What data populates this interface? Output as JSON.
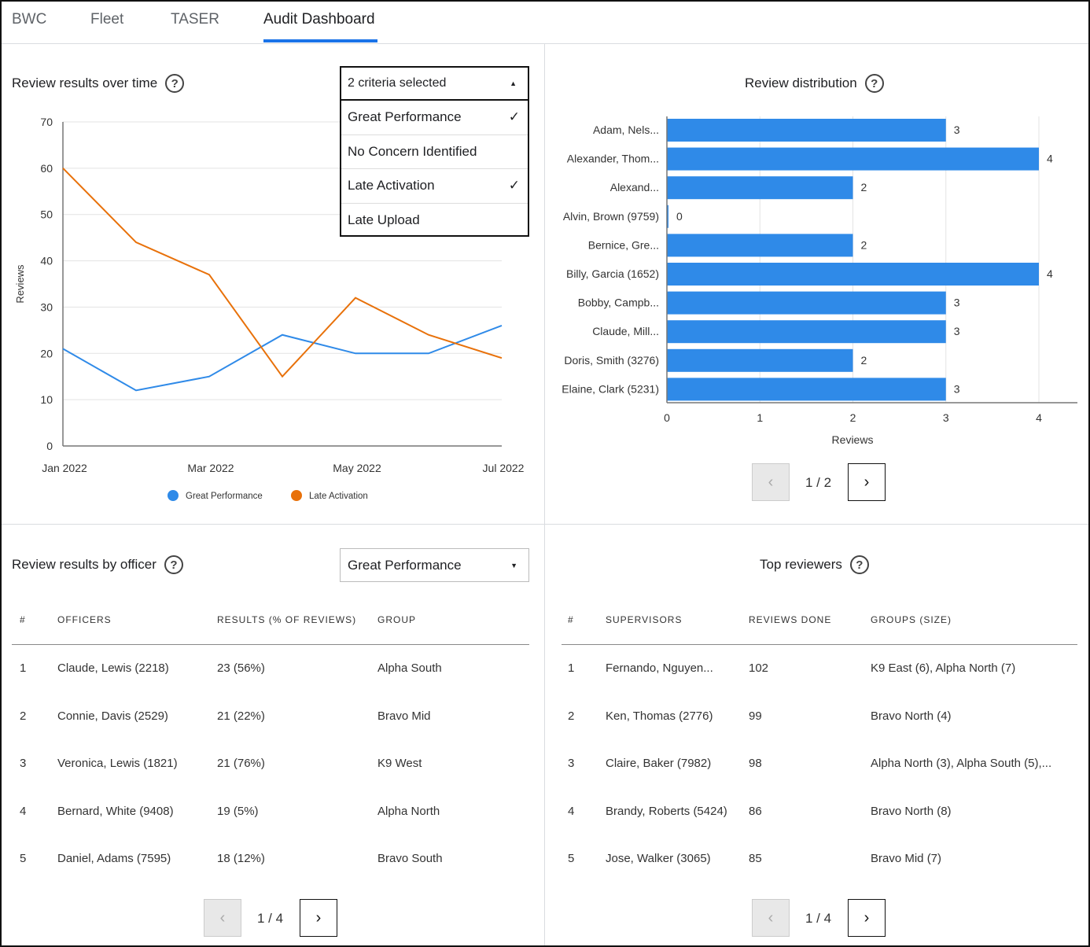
{
  "tabs": [
    {
      "label": "BWC"
    },
    {
      "label": "Fleet"
    },
    {
      "label": "TASER"
    },
    {
      "label": "Audit Dashboard",
      "active": true
    }
  ],
  "review_over_time": {
    "title": "Review results over time",
    "help_icon": "question-circle-icon",
    "dropdown": {
      "value": "2 criteria selected",
      "options": [
        {
          "label": "Great Performance",
          "checked": true
        },
        {
          "label": "No Concern Identified",
          "checked": false
        },
        {
          "label": "Late Activation",
          "checked": true
        },
        {
          "label": "Late Upload",
          "checked": false
        }
      ]
    }
  },
  "review_distribution": {
    "title": "Review distribution",
    "page": "1 / 2"
  },
  "by_officer": {
    "title": "Review results by officer",
    "select_value": "Great Performance",
    "headers": [
      "#",
      "OFFICERS",
      "RESULTS (% OF REVIEWS)",
      "GROUP"
    ],
    "rows": [
      [
        "1",
        "Claude, Lewis (2218)",
        "23 (56%)",
        "Alpha South"
      ],
      [
        "2",
        "Connie, Davis (2529)",
        "21 (22%)",
        "Bravo Mid"
      ],
      [
        "3",
        "Veronica, Lewis (1821)",
        "21 (76%)",
        "K9 West"
      ],
      [
        "4",
        "Bernard, White (9408)",
        "19 (5%)",
        "Alpha North"
      ],
      [
        "5",
        "Daniel, Adams (7595)",
        "18 (12%)",
        "Bravo South"
      ]
    ],
    "page": "1 / 4"
  },
  "top_reviewers": {
    "title": "Top reviewers",
    "headers": [
      "#",
      "SUPERVISORS",
      "REVIEWS DONE",
      "GROUPS (SIZE)"
    ],
    "rows": [
      [
        "1",
        "Fernando, Nguyen...",
        "102",
        "K9 East (6), Alpha North (7)"
      ],
      [
        "2",
        "Ken, Thomas (2776)",
        "99",
        "Bravo North (4)"
      ],
      [
        "3",
        "Claire, Baker (7982)",
        "98",
        "Alpha North (3), Alpha South (5),..."
      ],
      [
        "4",
        "Brandy, Roberts (5424)",
        "86",
        "Bravo North (8)"
      ],
      [
        "5",
        "Jose, Walker (3065)",
        "85",
        "Bravo Mid (7)"
      ]
    ],
    "page": "1 / 4"
  },
  "chart_data": [
    {
      "type": "line",
      "x": [
        "Jan 2022",
        "Feb 2022",
        "Mar 2022",
        "Apr 2022",
        "May 2022",
        "Jun 2022",
        "Jul 2022"
      ],
      "xticks": [
        "Jan 2022",
        "Mar 2022",
        "May 2022",
        "Jul 2022"
      ],
      "ylabel": "Reviews",
      "ylim": [
        0,
        70
      ],
      "yticks": [
        0,
        10,
        20,
        30,
        40,
        50,
        60,
        70
      ],
      "grid": true,
      "legend": "bottom",
      "series": [
        {
          "name": "Great Performance",
          "color": "#2f8ae8",
          "values": [
            21,
            12,
            15,
            24,
            20,
            20,
            26
          ]
        },
        {
          "name": "Late Activation",
          "color": "#e8710a",
          "values": [
            60,
            44,
            37,
            15,
            32,
            24,
            19
          ]
        }
      ]
    },
    {
      "type": "bar",
      "orientation": "horizontal",
      "xlabel": "Reviews",
      "xlim": [
        0,
        4
      ],
      "xticks": [
        0,
        1,
        2,
        3,
        4
      ],
      "grid": true,
      "color": "#2f8ae8",
      "categories": [
        "Adam, Nels...",
        "Alexander, Thom...",
        "Alexand...",
        "Alvin, Brown (9759)",
        "Bernice, Gre...",
        "Billy, Garcia (1652)",
        "Bobby, Campb...",
        "Claude, Mill...",
        "Doris, Smith (3276)",
        "Elaine, Clark (5231)"
      ],
      "values": [
        3,
        4,
        2,
        0,
        2,
        4,
        3,
        3,
        2,
        3
      ]
    }
  ]
}
